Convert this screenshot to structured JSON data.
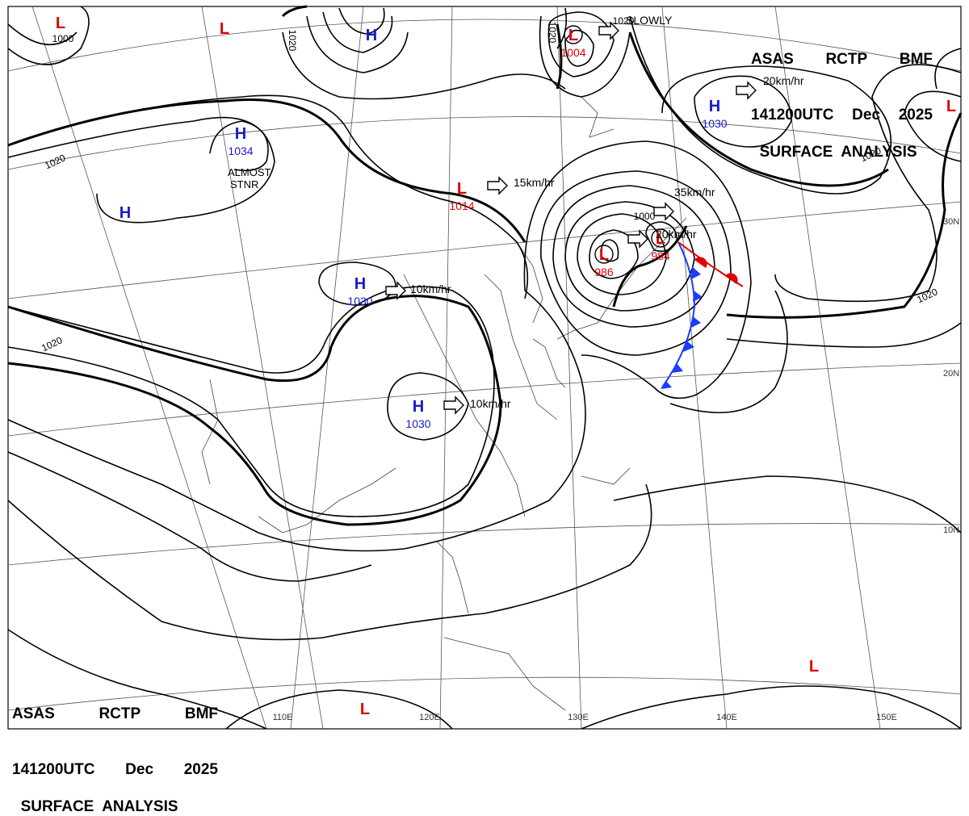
{
  "header": {
    "line1": [
      "ASAS",
      "RCTP",
      "BMF"
    ],
    "line2": [
      "141200UTC",
      "Dec",
      "2025"
    ],
    "line3": "SURFACE  ANALYSIS"
  },
  "colors": {
    "high": "#1a1acc",
    "low": "#dd0000",
    "isobar": "#000000",
    "grid": "#555555",
    "coast": "#333333",
    "cold_front": "#1a3cff",
    "warm_front": "#e00000"
  },
  "lat_labels": [
    "30N",
    "20N",
    "10N"
  ],
  "lon_labels": [
    "110E",
    "120E",
    "130E",
    "140E",
    "150E"
  ],
  "isobar_labels": [
    "1000",
    "1020",
    "1020",
    "1020",
    "1020",
    "1020",
    "1020",
    "1020",
    "1000"
  ],
  "centers": [
    {
      "type": "H",
      "pressure": "1034"
    },
    {
      "type": "H",
      "pressure": "1030"
    },
    {
      "type": "H",
      "pressure": "1030"
    },
    {
      "type": "H",
      "pressure": "1030"
    },
    {
      "type": "H",
      "pressure": ""
    },
    {
      "type": "H",
      "pressure": ""
    },
    {
      "type": "L",
      "pressure": "1004"
    },
    {
      "type": "L",
      "pressure": "1014"
    },
    {
      "type": "L",
      "pressure": "986"
    },
    {
      "type": "L",
      "pressure": "984"
    },
    {
      "type": "L",
      "pressure": ""
    },
    {
      "type": "L",
      "pressure": ""
    },
    {
      "type": "L",
      "pressure": ""
    },
    {
      "type": "L",
      "pressure": ""
    },
    {
      "type": "L",
      "pressure": ""
    }
  ],
  "motions": [
    "SLOWLY",
    "20km/hr",
    "15km/hr",
    "35km/hr",
    "20km/hr",
    "10km/hr",
    "10km/hr"
  ],
  "notes": [
    "ALMOST",
    "STNR"
  ]
}
